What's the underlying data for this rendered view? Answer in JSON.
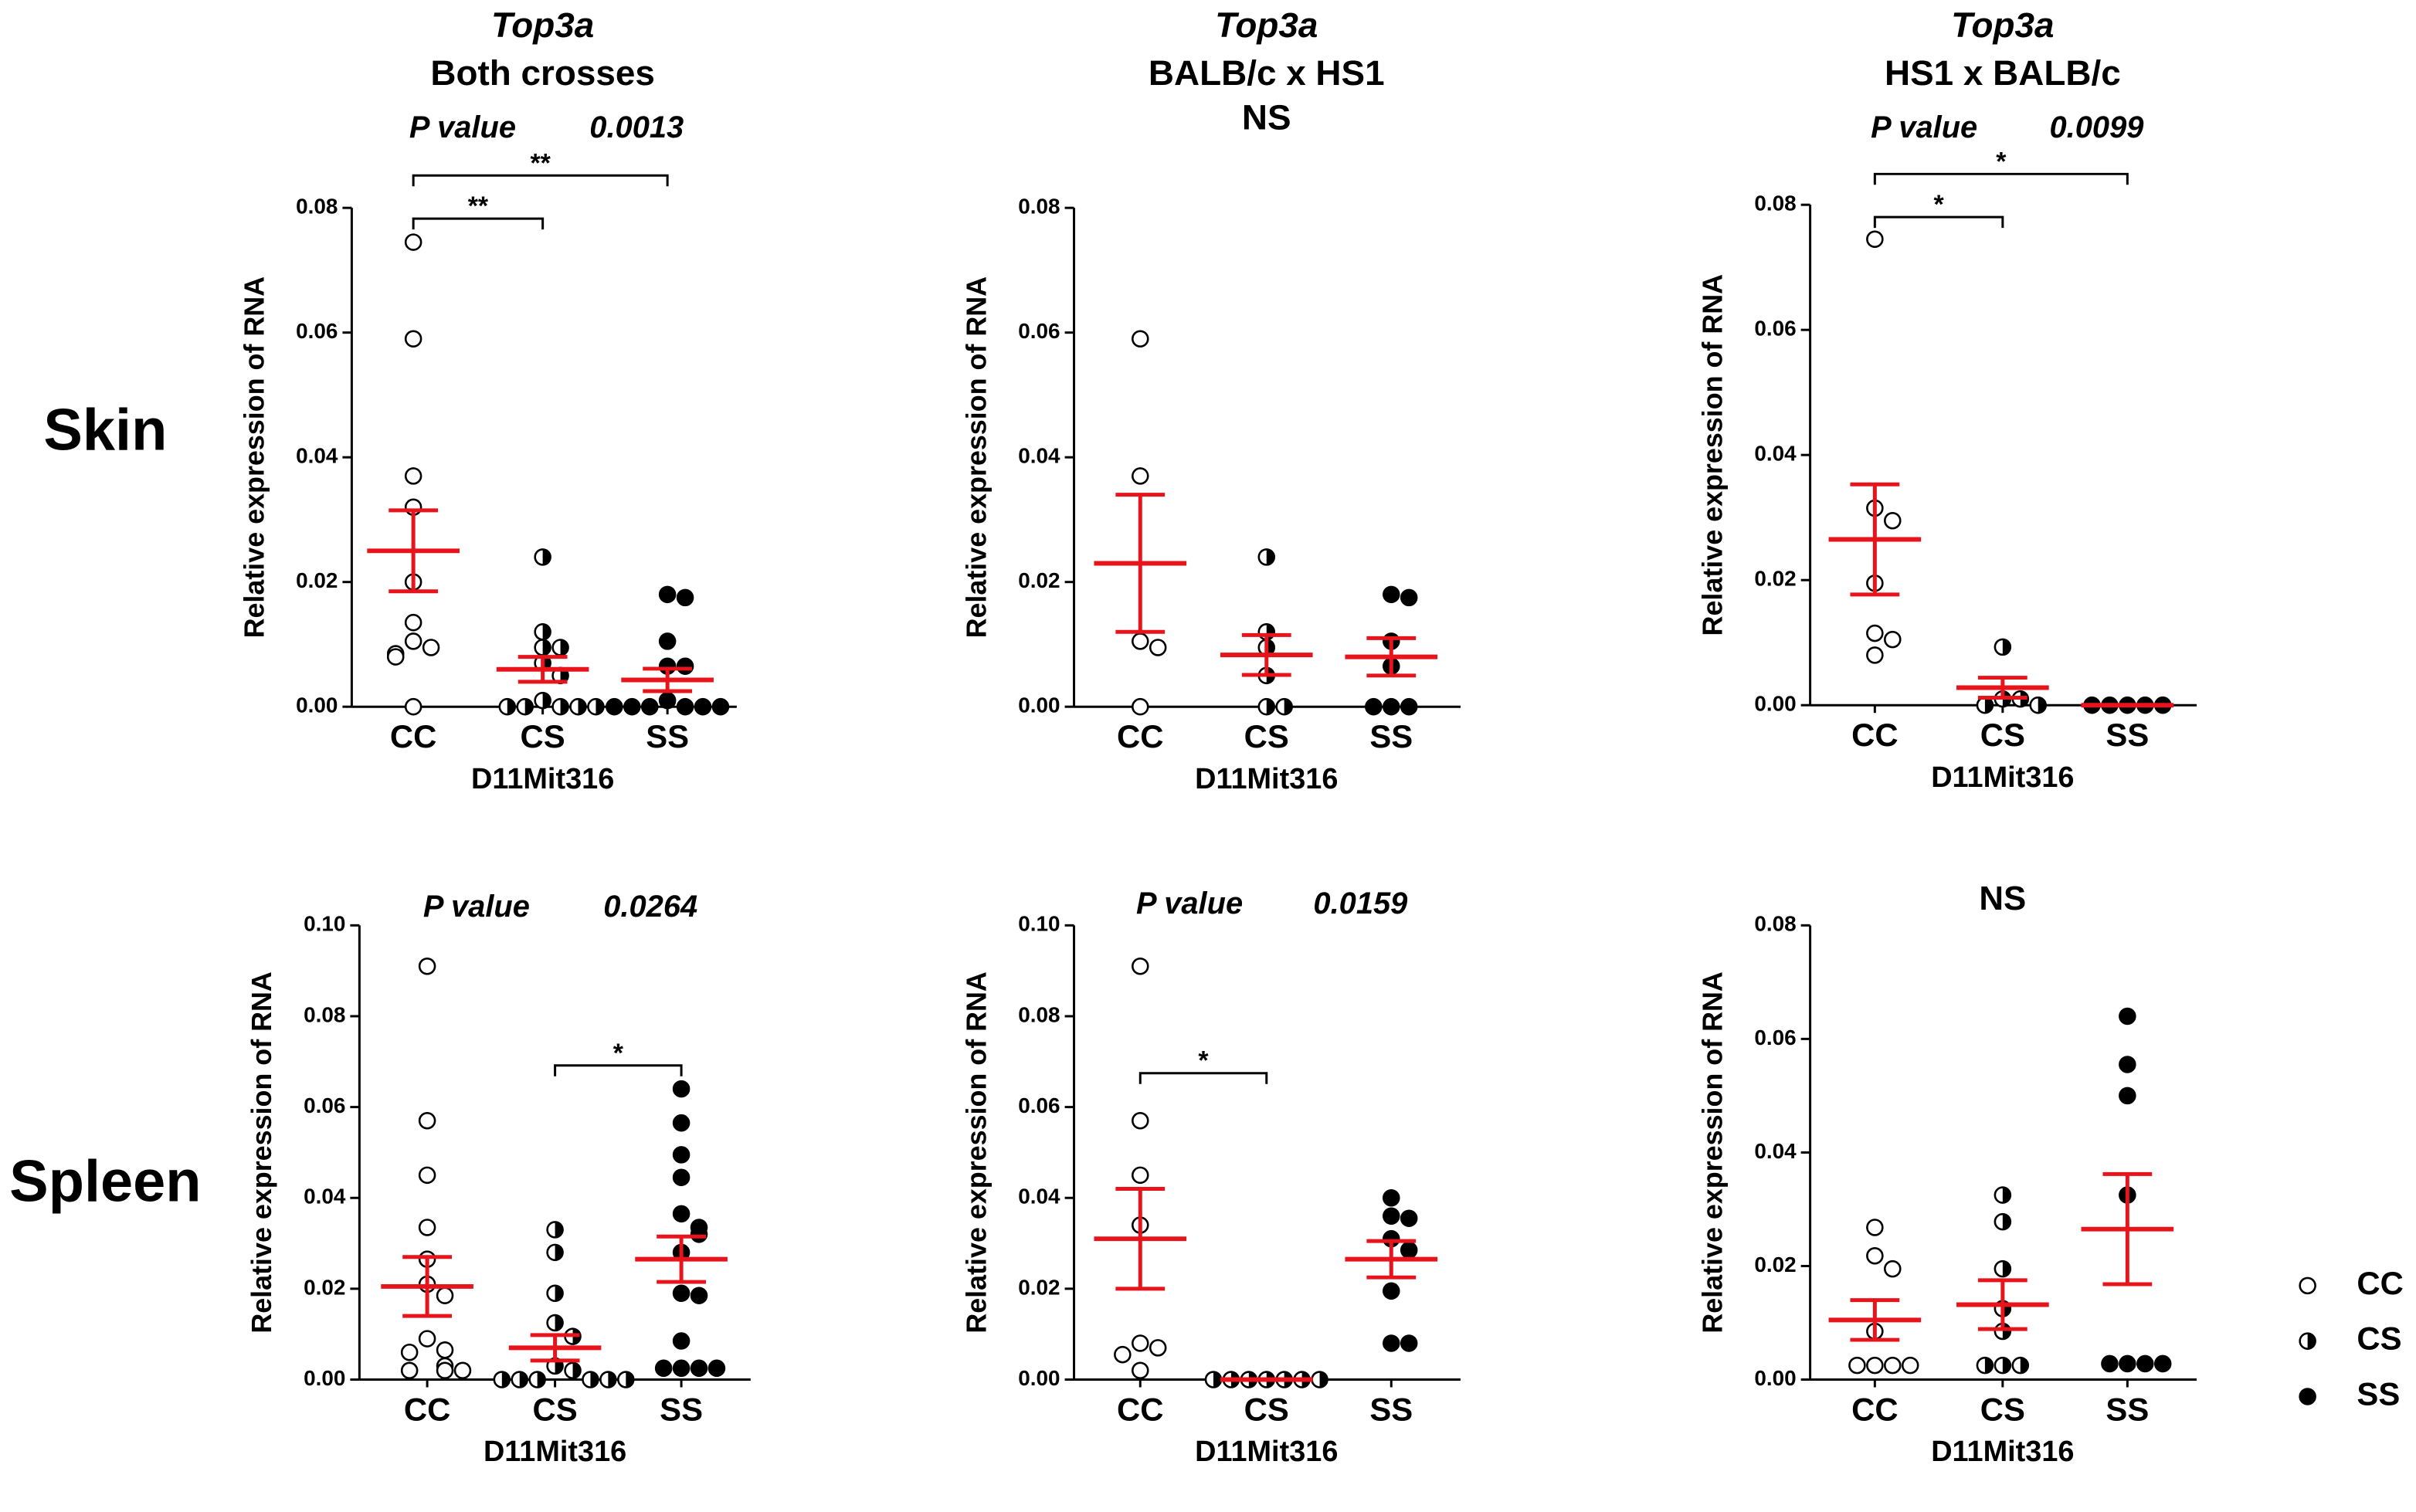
{
  "row_labels": [
    "Skin",
    "Spleen"
  ],
  "legend": [
    {
      "name": "CC",
      "marker": "open"
    },
    {
      "name": "CS",
      "marker": "half"
    },
    {
      "name": "SS",
      "marker": "filled"
    }
  ],
  "color": "#e8141b",
  "chart_data": [
    {
      "type": "scatter",
      "title_italic": "Top3a",
      "title": [
        "Both crosses"
      ],
      "annotation": {
        "label": "P value",
        "value": 0.0013
      },
      "brackets": [
        {
          "from": 0,
          "to": 1,
          "label": "**"
        },
        {
          "from": 0,
          "to": 2,
          "label": "**"
        }
      ],
      "ylabel": "Relative expression of RNA",
      "xlabel": "D11Mit316",
      "ylim": [
        0,
        0.08
      ],
      "yticks": [
        {
          "value": 0,
          "label": "0.00"
        },
        {
          "value": 0.02,
          "label": "0.02"
        },
        {
          "value": 0.04,
          "label": "0.04"
        },
        {
          "value": 0.06,
          "label": "0.06"
        },
        {
          "value": 0.08,
          "label": "0.08"
        }
      ],
      "series": [
        {
          "name": "CC",
          "values": [
            0.0745,
            0.059,
            0.037,
            0.032,
            0.02,
            0.0135,
            0.0105,
            0.0095,
            0.0085,
            0.008,
            0
          ],
          "mean": 0.025,
          "sem": 0.0065
        },
        {
          "name": "CS",
          "values": [
            0.024,
            0.012,
            0.0095,
            0.0095,
            0.007,
            0.005,
            0.001,
            0,
            0,
            0,
            0,
            0
          ],
          "mean": 0.006,
          "sem": 0.002
        },
        {
          "name": "SS",
          "values": [
            0.018,
            0.0175,
            0.0105,
            0.0065,
            0.0065,
            0.001,
            0,
            0,
            0,
            0,
            0,
            0
          ],
          "mean": 0.0043,
          "sem": 0.0018
        }
      ]
    },
    {
      "type": "scatter",
      "title_italic": "Top3a",
      "title": [
        "BALB/c x HS1",
        "NS"
      ],
      "ylabel": "Relative expression of RNA",
      "xlabel": "D11Mit316",
      "ylim": [
        0,
        0.08
      ],
      "yticks": [
        {
          "value": 0,
          "label": "0.00"
        },
        {
          "value": 0.02,
          "label": "0.02"
        },
        {
          "value": 0.04,
          "label": "0.04"
        },
        {
          "value": 0.06,
          "label": "0.06"
        },
        {
          "value": 0.08,
          "label": "0.08"
        }
      ],
      "series": [
        {
          "name": "CC",
          "values": [
            0.059,
            0.037,
            0.0105,
            0.0095,
            0
          ],
          "mean": 0.023,
          "sem": 0.011
        },
        {
          "name": "CS",
          "values": [
            0.024,
            0.012,
            0.0095,
            0.005,
            0,
            0
          ],
          "mean": 0.0083,
          "sem": 0.0032
        },
        {
          "name": "SS",
          "values": [
            0.018,
            0.0175,
            0.0105,
            0.0065,
            0,
            0,
            0
          ],
          "mean": 0.008,
          "sem": 0.003
        }
      ]
    },
    {
      "type": "scatter",
      "title_italic": "Top3a",
      "title": [
        "HS1 x BALB/c"
      ],
      "annotation": {
        "label": "P value",
        "value": 0.0099
      },
      "brackets": [
        {
          "from": 0,
          "to": 1,
          "label": "*"
        },
        {
          "from": 0,
          "to": 2,
          "label": "*"
        }
      ],
      "ylabel": "Relative expression of RNA",
      "xlabel": "D11Mit316",
      "ylim": [
        0,
        0.08
      ],
      "yticks": [
        {
          "value": 0,
          "label": "0.00"
        },
        {
          "value": 0.02,
          "label": "0.02"
        },
        {
          "value": 0.04,
          "label": "0.04"
        },
        {
          "value": 0.06,
          "label": "0.06"
        },
        {
          "value": 0.08,
          "label": "0.08"
        }
      ],
      "series": [
        {
          "name": "CC",
          "values": [
            0.0745,
            0.0315,
            0.0295,
            0.0195,
            0.0115,
            0.0105,
            0.008
          ],
          "mean": 0.0265,
          "sem": 0.0088
        },
        {
          "name": "CS",
          "values": [
            0.0093,
            0.001,
            0.001,
            0,
            0
          ],
          "mean": 0.0028,
          "sem": 0.0016
        },
        {
          "name": "SS",
          "values": [
            0,
            0,
            0,
            0,
            0
          ],
          "mean": 0,
          "sem": 0
        }
      ]
    },
    {
      "type": "scatter",
      "annotation": {
        "label": "P value",
        "value": 0.0264
      },
      "brackets": [
        {
          "from": 1,
          "to": 2,
          "label": "*"
        }
      ],
      "ylabel": "Relative expression of RNA",
      "xlabel": "D11Mit316",
      "ylim": [
        0,
        0.1
      ],
      "yticks": [
        {
          "value": 0,
          "label": "0.00"
        },
        {
          "value": 0.02,
          "label": "0.02"
        },
        {
          "value": 0.04,
          "label": "0.04"
        },
        {
          "value": 0.06,
          "label": "0.06"
        },
        {
          "value": 0.08,
          "label": "0.08"
        },
        {
          "value": 0.1,
          "label": "0.10"
        }
      ],
      "series": [
        {
          "name": "CC",
          "values": [
            0.091,
            0.057,
            0.045,
            0.0335,
            0.0265,
            0.021,
            0.0185,
            0.009,
            0.0065,
            0.006,
            0.003,
            0.002,
            0.002,
            0.002
          ],
          "mean": 0.0205,
          "sem": 0.0065
        },
        {
          "name": "CS",
          "values": [
            0.033,
            0.028,
            0.019,
            0.0125,
            0.0095,
            0.003,
            0.002,
            0,
            0,
            0,
            0,
            0,
            0
          ],
          "mean": 0.007,
          "sem": 0.0028
        },
        {
          "name": "SS",
          "values": [
            0.064,
            0.0565,
            0.0495,
            0.0445,
            0.0365,
            0.0335,
            0.032,
            0.028,
            0.019,
            0.0185,
            0.0085,
            0.0025,
            0.0025,
            0.0025,
            0.0025
          ],
          "mean": 0.0265,
          "sem": 0.005
        }
      ]
    },
    {
      "type": "scatter",
      "annotation": {
        "label": "P value",
        "value": 0.0159
      },
      "brackets": [
        {
          "from": 0,
          "to": 1,
          "label": "*"
        }
      ],
      "ylabel": "Relative expression of RNA",
      "xlabel": "D11Mit316",
      "ylim": [
        0,
        0.1
      ],
      "yticks": [
        {
          "value": 0,
          "label": "0.00"
        },
        {
          "value": 0.02,
          "label": "0.02"
        },
        {
          "value": 0.04,
          "label": "0.04"
        },
        {
          "value": 0.06,
          "label": "0.06"
        },
        {
          "value": 0.08,
          "label": "0.08"
        },
        {
          "value": 0.1,
          "label": "0.10"
        }
      ],
      "series": [
        {
          "name": "CC",
          "values": [
            0.091,
            0.057,
            0.045,
            0.034,
            0.008,
            0.007,
            0.0055,
            0.002
          ],
          "mean": 0.031,
          "sem": 0.011
        },
        {
          "name": "CS",
          "values": [
            0,
            0,
            0,
            0,
            0,
            0,
            0
          ],
          "mean": 0,
          "sem": 0
        },
        {
          "name": "SS",
          "values": [
            0.04,
            0.036,
            0.0355,
            0.031,
            0.0285,
            0.0195,
            0.008,
            0.008
          ],
          "mean": 0.0265,
          "sem": 0.004
        }
      ]
    },
    {
      "type": "scatter",
      "note": "NS",
      "ylabel": "Relative expression of RNA",
      "xlabel": "D11Mit316",
      "ylim": [
        0,
        0.08
      ],
      "yticks": [
        {
          "value": 0,
          "label": "0.00"
        },
        {
          "value": 0.02,
          "label": "0.02"
        },
        {
          "value": 0.04,
          "label": "0.04"
        },
        {
          "value": 0.06,
          "label": "0.06"
        },
        {
          "value": 0.08,
          "label": "0.08"
        }
      ],
      "series": [
        {
          "name": "CC",
          "values": [
            0.0268,
            0.0218,
            0.0195,
            0.0085,
            0.0025,
            0.0025,
            0.0025,
            0.0025
          ],
          "mean": 0.0105,
          "sem": 0.0035
        },
        {
          "name": "CS",
          "values": [
            0.0325,
            0.0278,
            0.0195,
            0.0125,
            0.0085,
            0.0025,
            0.0025,
            0.0025
          ],
          "mean": 0.0132,
          "sem": 0.0043
        },
        {
          "name": "SS",
          "values": [
            0.064,
            0.0555,
            0.05,
            0.0325,
            0.0028,
            0.0028,
            0.0028,
            0.0028
          ],
          "mean": 0.0265,
          "sem": 0.0097
        }
      ]
    }
  ]
}
